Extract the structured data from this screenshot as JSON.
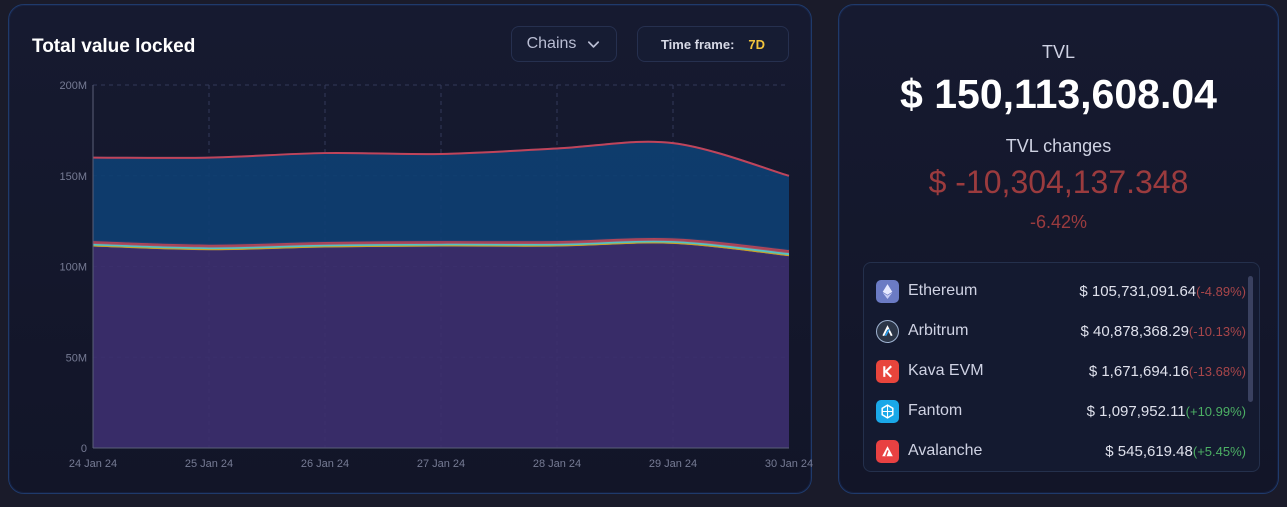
{
  "chart_panel": {
    "title": "Total value locked",
    "chains_label": "Chains",
    "timeframe_label": "Time frame:",
    "timeframe_value": "7D"
  },
  "chart_data": {
    "type": "area",
    "title": "Total value locked",
    "stacked": true,
    "categories": [
      "24 Jan 24",
      "25 Jan 24",
      "26 Jan 24",
      "27 Jan 24",
      "28 Jan 24",
      "29 Jan 24",
      "30 Jan 24"
    ],
    "x": [
      0,
      1,
      2,
      3,
      4,
      5,
      6
    ],
    "y_ticks": [
      "0",
      "50M",
      "100M",
      "150M",
      "200M"
    ],
    "ylim": [
      0,
      200000000
    ],
    "grid": true,
    "series": [
      {
        "name": "Ethereum",
        "color": "#3c2f6e",
        "values": [
          111000000,
          109000000,
          110500000,
          111000000,
          111000000,
          112500000,
          105700000
        ]
      },
      {
        "name": "Avalanche",
        "color": "#c9a227",
        "values": [
          600000,
          600000,
          600000,
          600000,
          600000,
          600000,
          550000
        ]
      },
      {
        "name": "Fantom",
        "color": "#4fc3c9",
        "values": [
          900000,
          900000,
          900000,
          900000,
          900000,
          900000,
          1100000
        ]
      },
      {
        "name": "Kava EVM",
        "color": "#b0465a",
        "values": [
          1500000,
          1500000,
          1500000,
          1500000,
          1500000,
          1500000,
          1700000
        ]
      },
      {
        "name": "Arbitrum",
        "color": "#0e3f72",
        "values": [
          46000000,
          48000000,
          49000000,
          48000000,
          51000000,
          52500000,
          40900000
        ]
      }
    ],
    "top_line_color": "#c0445a"
  },
  "tvl_panel": {
    "tvl_label": "TVL",
    "tvl_value": "$ 150,113,608.04",
    "changes_label": "TVL changes",
    "changes_value": "$ -10,304,137.348",
    "changes_pct": "-6.42%"
  },
  "chains": [
    {
      "name": "Ethereum",
      "amount": "$ 105,731,091.64",
      "change": "(-4.89%)",
      "trend": "neg",
      "icon": "ethereum-icon",
      "icon_bg": "#5c6bb0"
    },
    {
      "name": "Arbitrum",
      "amount": "$ 40,878,368.29",
      "change": "(-10.13%)",
      "trend": "neg",
      "icon": "arbitrum-icon",
      "icon_bg": "#2b3446"
    },
    {
      "name": "Kava EVM",
      "amount": "$ 1,671,694.16",
      "change": "(-13.68%)",
      "trend": "neg",
      "icon": "kava-icon",
      "icon_bg": "#e8453c"
    },
    {
      "name": "Fantom",
      "amount": "$ 1,097,952.11",
      "change": "(+10.99%)",
      "trend": "pos",
      "icon": "fantom-icon",
      "icon_bg": "#1aa8e8"
    },
    {
      "name": "Avalanche",
      "amount": "$ 545,619.48",
      "change": "(+5.45%)",
      "trend": "pos",
      "icon": "avalanche-icon",
      "icon_bg": "#e84142"
    }
  ]
}
